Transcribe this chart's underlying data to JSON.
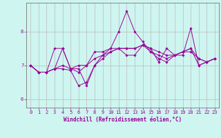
{
  "xlabel": "Windchill (Refroidissement éolien,°C)",
  "bg_color": "#cef5f0",
  "line_color": "#990099",
  "grid_color": "#bbbbbb",
  "x_ticks": [
    0,
    1,
    2,
    3,
    4,
    5,
    6,
    7,
    8,
    9,
    10,
    11,
    12,
    13,
    14,
    15,
    16,
    17,
    18,
    19,
    20,
    21,
    22,
    23
  ],
  "y_ticks": [
    6,
    7,
    8
  ],
  "ylim": [
    5.75,
    8.85
  ],
  "xlim": [
    -0.5,
    23.5
  ],
  "series": [
    [
      7.0,
      6.8,
      6.8,
      7.5,
      7.5,
      6.9,
      6.9,
      6.4,
      7.0,
      7.3,
      7.5,
      8.0,
      8.6,
      8.0,
      7.7,
      7.4,
      7.2,
      7.1,
      7.3,
      7.3,
      8.1,
      7.0,
      7.1,
      7.2
    ],
    [
      7.0,
      6.8,
      6.8,
      6.9,
      7.5,
      6.9,
      7.0,
      7.0,
      7.4,
      7.4,
      7.5,
      7.5,
      7.3,
      7.3,
      7.6,
      7.4,
      7.3,
      7.2,
      7.3,
      7.4,
      7.4,
      7.2,
      7.1,
      7.2
    ],
    [
      7.0,
      6.8,
      6.8,
      6.9,
      7.0,
      6.9,
      6.8,
      7.0,
      7.2,
      7.3,
      7.4,
      7.5,
      7.5,
      7.5,
      7.6,
      7.5,
      7.4,
      7.3,
      7.3,
      7.4,
      7.5,
      7.2,
      7.1,
      7.2
    ],
    [
      7.0,
      6.8,
      6.8,
      6.9,
      6.9,
      6.85,
      6.4,
      6.5,
      7.0,
      7.2,
      7.4,
      7.5,
      7.5,
      7.5,
      7.6,
      7.5,
      7.1,
      7.5,
      7.3,
      7.4,
      7.5,
      7.0,
      7.1,
      7.2
    ]
  ]
}
